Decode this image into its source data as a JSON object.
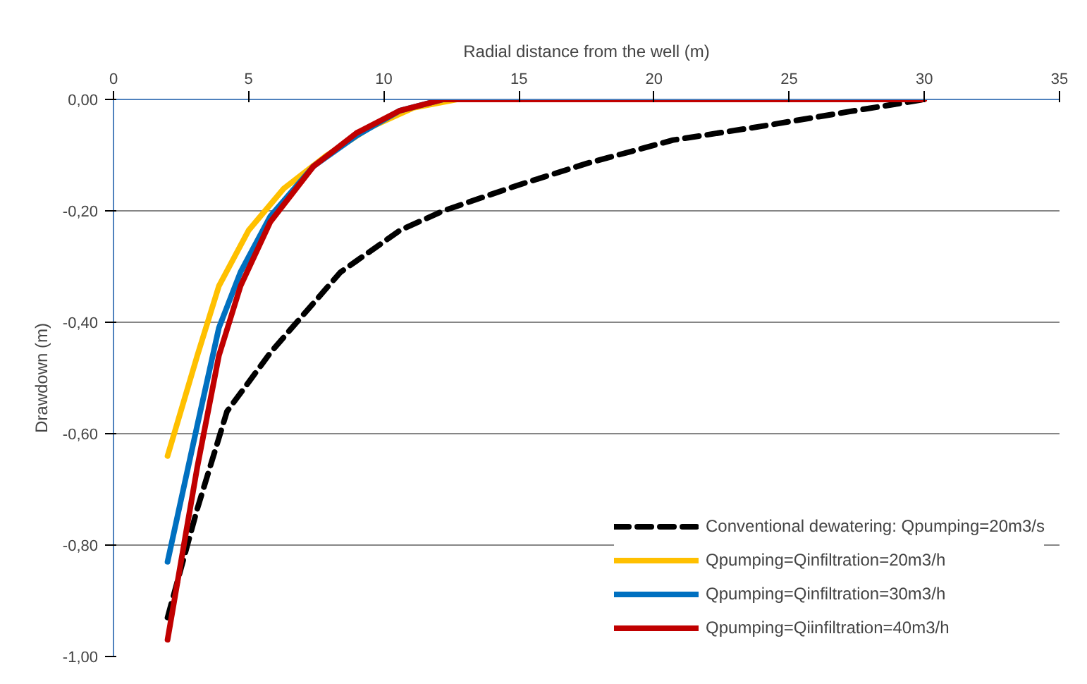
{
  "chart_data": {
    "type": "line",
    "xlabel": "Radial distance from the well (m)",
    "ylabel": "Drawdown (m)",
    "xlim": [
      0,
      35
    ],
    "xticks": [
      0,
      5,
      10,
      15,
      20,
      25,
      30,
      35
    ],
    "ylim": [
      -1.0,
      0.0
    ],
    "yticks": [
      {
        "value": 0,
        "label": "0,00"
      },
      {
        "value": -0.2,
        "label": "-0,20"
      },
      {
        "value": -0.4,
        "label": "-0,40"
      },
      {
        "value": -0.6,
        "label": "-0,60"
      },
      {
        "value": -0.8,
        "label": "-0,80"
      },
      {
        "value": -1.0,
        "label": "-1,00"
      }
    ],
    "grid": "y",
    "legend": "bottom right",
    "marker": "none",
    "series": [
      {
        "name": "Conventional dewatering: Qpumping=20m3/s",
        "color": "#000000",
        "line_style": "dashed",
        "x": [
          2,
          3.1,
          4.2,
          5.8,
          6.6,
          8.4,
          10.6,
          12.2,
          14.9,
          17.5,
          20.7,
          24,
          27.2,
          30
        ],
        "values": [
          -0.93,
          -0.735,
          -0.56,
          -0.455,
          -0.41,
          -0.31,
          -0.235,
          -0.2,
          -0.155,
          -0.115,
          -0.073,
          -0.048,
          -0.022,
          0
        ]
      },
      {
        "name": "Qpumping=Qinfiltration=20m3/h",
        "color": "#ffc000",
        "line_style": "solid",
        "x": [
          2,
          3.1,
          3.9,
          5,
          6.3,
          7.9,
          9.5,
          11.1,
          12.7
        ],
        "values": [
          -0.64,
          -0.46,
          -0.335,
          -0.235,
          -0.16,
          -0.1,
          -0.05,
          -0.015,
          0
        ]
      },
      {
        "name": "Qpumping=Qinfiltration=30m3/h",
        "color": "#0070c0",
        "line_style": "solid",
        "x": [
          2,
          3.1,
          3.9,
          4.7,
          5.8,
          7.4,
          9,
          10.6,
          12.2
        ],
        "values": [
          -0.83,
          -0.585,
          -0.41,
          -0.31,
          -0.21,
          -0.12,
          -0.065,
          -0.02,
          0
        ]
      },
      {
        "name": "Qpumping=Qiinfiltration=40m3/h",
        "color": "#c00000",
        "line_style": "solid",
        "x": [
          2,
          3.1,
          3.9,
          4.7,
          5.8,
          7.4,
          9,
          10.6,
          12.2,
          20,
          30
        ],
        "values": [
          -0.97,
          -0.66,
          -0.46,
          -0.335,
          -0.22,
          -0.12,
          -0.06,
          -0.02,
          0,
          0,
          0
        ]
      }
    ]
  }
}
